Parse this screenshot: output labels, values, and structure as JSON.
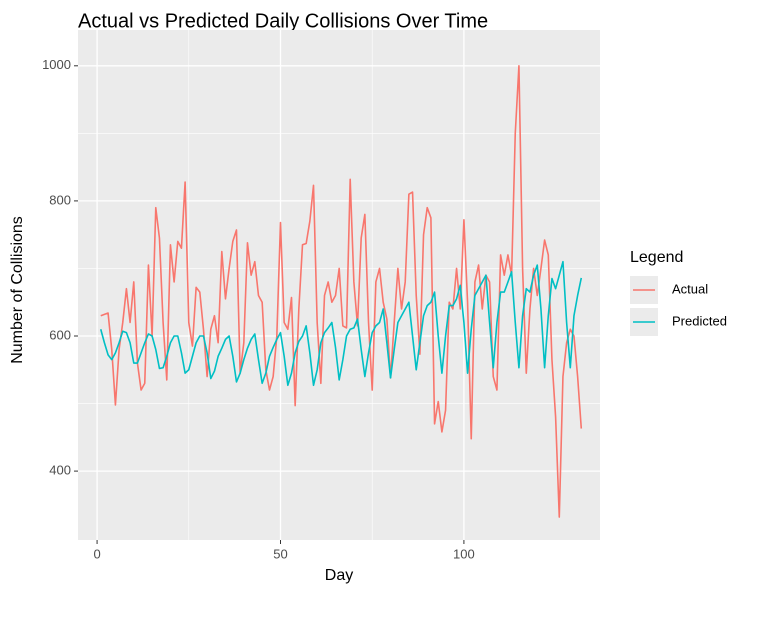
{
  "chart_data": {
    "type": "line",
    "title": "Actual vs Predicted Daily Collisions Over Time",
    "x_label": "Day",
    "y_label": "Number of Collisions",
    "legend_title": "Legend",
    "legend": "right",
    "grid": true,
    "xlim": [
      -5.2,
      137.1
    ],
    "xticks": [
      0,
      50,
      100
    ],
    "ylim": [
      298,
      1053
    ],
    "yticks": [
      400,
      600,
      800,
      1000
    ],
    "x": [
      1,
      2,
      3,
      4,
      5,
      6,
      7,
      8,
      9,
      10,
      11,
      12,
      13,
      14,
      15,
      16,
      17,
      18,
      19,
      20,
      21,
      22,
      23,
      24,
      25,
      26,
      27,
      28,
      29,
      30,
      31,
      32,
      33,
      34,
      35,
      36,
      37,
      38,
      39,
      40,
      41,
      42,
      43,
      44,
      45,
      46,
      47,
      48,
      49,
      50,
      51,
      52,
      53,
      54,
      55,
      56,
      57,
      58,
      59,
      60,
      61,
      62,
      63,
      64,
      65,
      66,
      67,
      68,
      69,
      70,
      71,
      72,
      73,
      74,
      75,
      76,
      77,
      78,
      79,
      80,
      81,
      82,
      83,
      84,
      85,
      86,
      87,
      88,
      89,
      90,
      91,
      92,
      93,
      94,
      95,
      96,
      97,
      98,
      99,
      100,
      101,
      102,
      103,
      104,
      105,
      106,
      107,
      108,
      109,
      110,
      111,
      112,
      113,
      114,
      115,
      116,
      117,
      118,
      119,
      120,
      121,
      122,
      123,
      124,
      125,
      126,
      127,
      128,
      129,
      130,
      131,
      132
    ],
    "series": [
      {
        "name": "Actual",
        "color": "#F8766D",
        "values": [
          630,
          632,
          634,
          580,
          498,
          580,
          620,
          670,
          620,
          680,
          560,
          520,
          530,
          705,
          600,
          790,
          745,
          620,
          535,
          735,
          680,
          740,
          730,
          828,
          620,
          585,
          672,
          665,
          610,
          540,
          610,
          630,
          590,
          725,
          655,
          700,
          740,
          757,
          545,
          590,
          738,
          690,
          710,
          660,
          650,
          550,
          520,
          540,
          600,
          768,
          620,
          610,
          657,
          497,
          640,
          735,
          737,
          770,
          823,
          620,
          530,
          660,
          680,
          650,
          660,
          700,
          615,
          612,
          832,
          680,
          615,
          745,
          780,
          620,
          520,
          680,
          700,
          650,
          625,
          538,
          620,
          700,
          640,
          680,
          810,
          813,
          660,
          573,
          750,
          790,
          775,
          470,
          503,
          458,
          490,
          650,
          640,
          700,
          640,
          772,
          650,
          448,
          680,
          705,
          640,
          690,
          680,
          540,
          520,
          720,
          690,
          720,
          690,
          900,
          1000,
          700,
          545,
          640,
          700,
          660,
          700,
          742,
          720,
          565,
          480,
          332,
          540,
          590,
          610,
          600,
          540,
          463
        ]
      },
      {
        "name": "Predicted",
        "color": "#00BFC4",
        "values": [
          610,
          590,
          572,
          565,
          575,
          590,
          607,
          605,
          590,
          560,
          560,
          575,
          590,
          603,
          600,
          580,
          552,
          553,
          570,
          590,
          600,
          600,
          575,
          545,
          550,
          570,
          590,
          600,
          600,
          575,
          537,
          548,
          570,
          582,
          595,
          600,
          570,
          532,
          545,
          565,
          582,
          595,
          603,
          565,
          530,
          545,
          570,
          583,
          595,
          605,
          570,
          527,
          545,
          575,
          592,
          600,
          615,
          575,
          527,
          550,
          590,
          605,
          612,
          620,
          583,
          535,
          565,
          600,
          610,
          612,
          625,
          580,
          540,
          575,
          605,
          615,
          620,
          640,
          590,
          538,
          580,
          620,
          630,
          640,
          650,
          600,
          550,
          590,
          630,
          645,
          650,
          665,
          600,
          545,
          600,
          645,
          645,
          655,
          675,
          620,
          545,
          610,
          660,
          670,
          680,
          690,
          620,
          553,
          620,
          665,
          665,
          680,
          695,
          620,
          553,
          630,
          670,
          665,
          690,
          705,
          640,
          553,
          630,
          685,
          670,
          690,
          710,
          620,
          553,
          630,
          660,
          686
        ]
      }
    ]
  }
}
